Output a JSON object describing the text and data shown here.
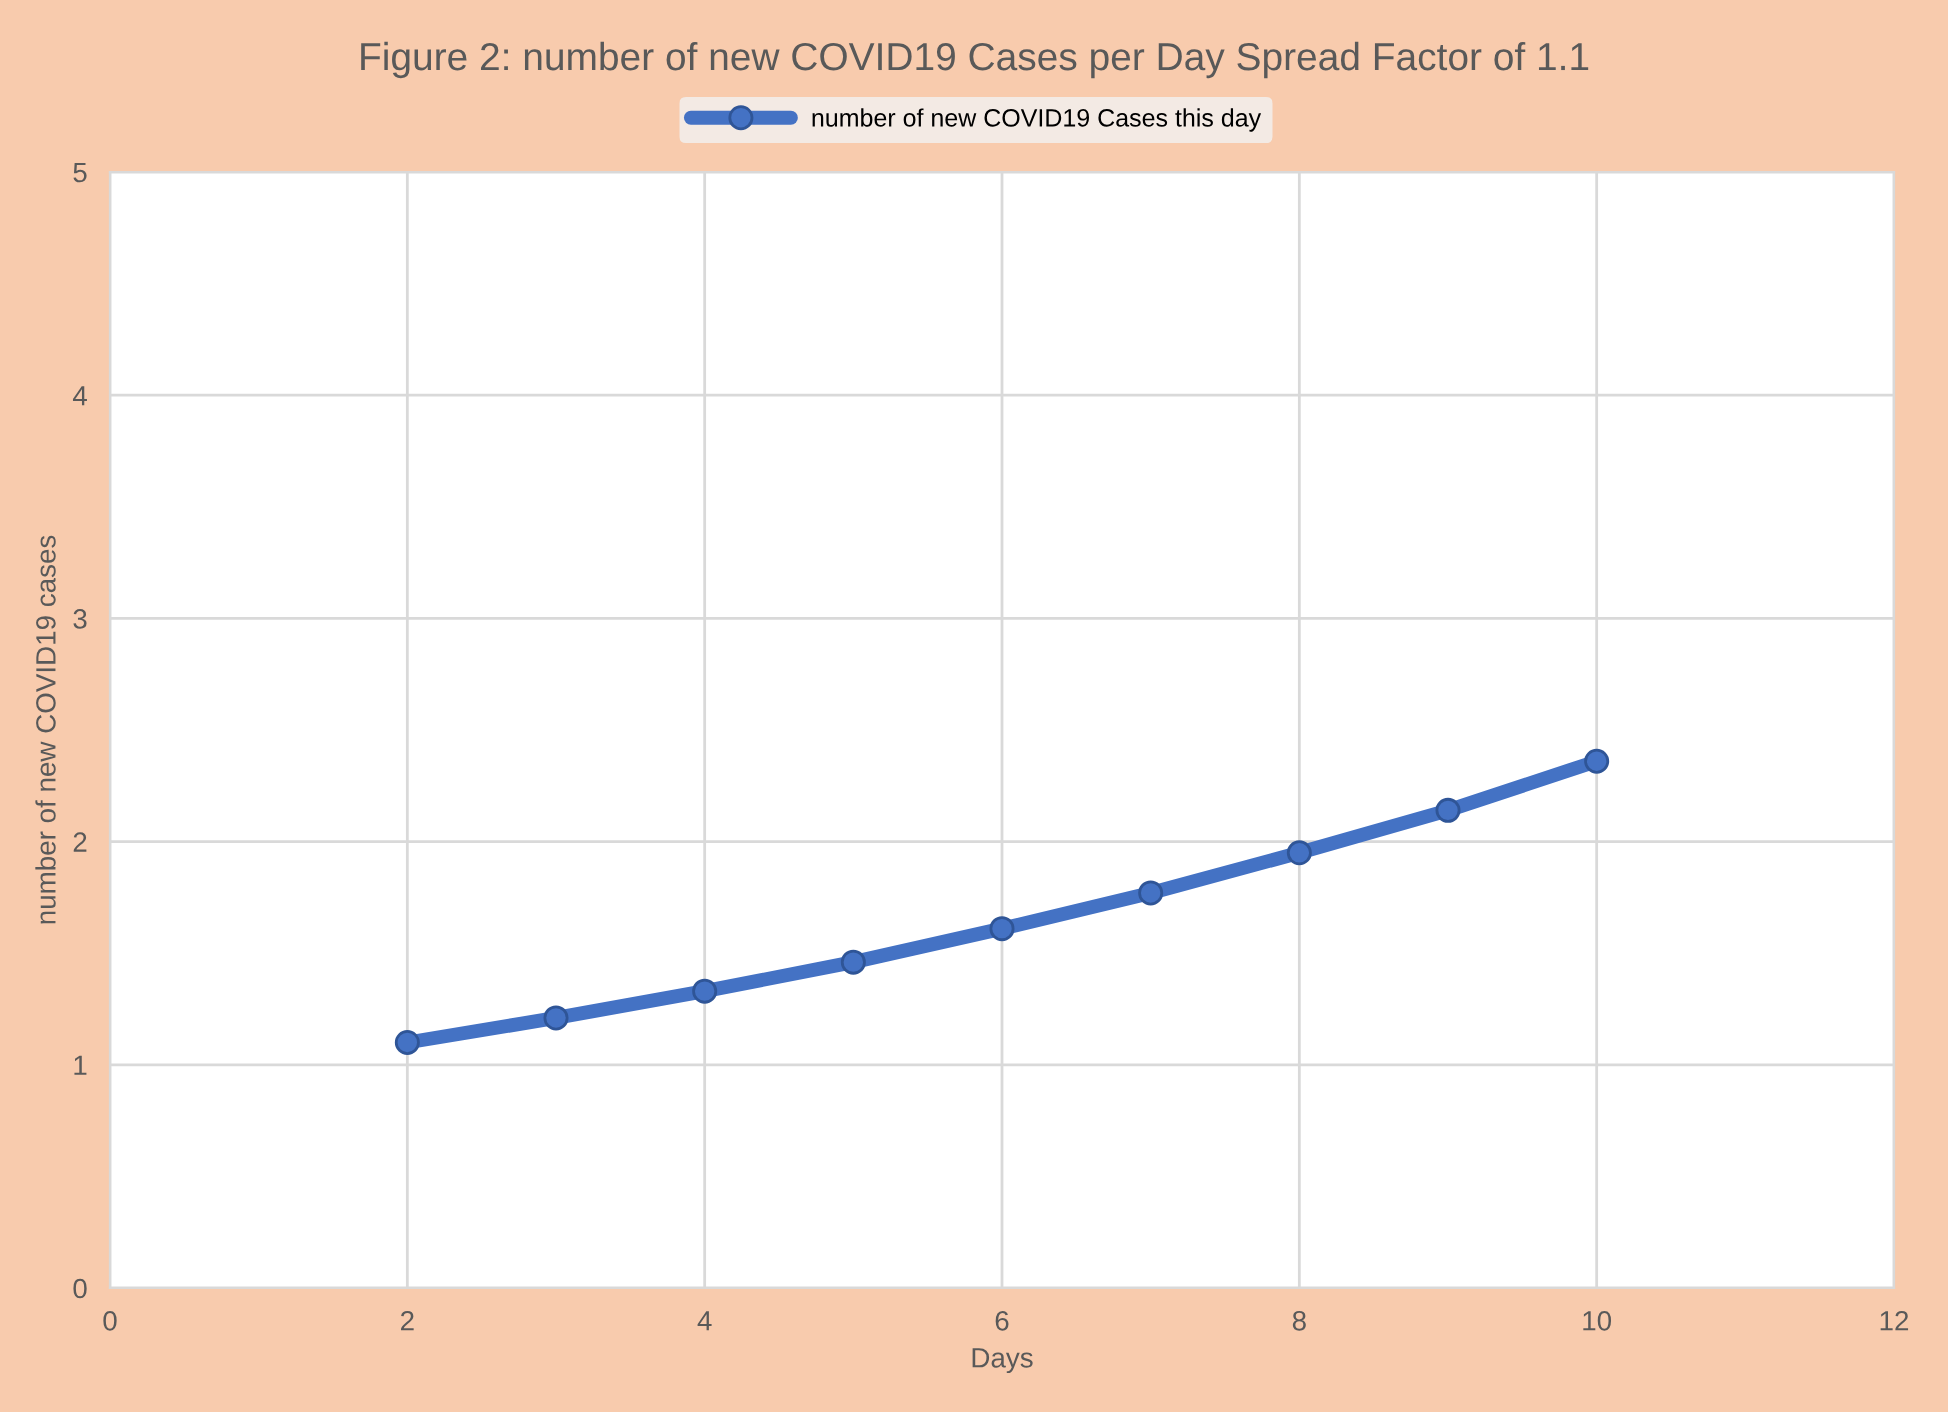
{
  "chart_data": {
    "type": "line",
    "title": "Figure 2: number of new COVID19 Cases per Day Spread Factor of 1.1",
    "xlabel": "Days",
    "ylabel": "number of new COVID19 cases",
    "x": [
      2,
      3,
      4,
      5,
      6,
      7,
      8,
      9,
      10
    ],
    "series": [
      {
        "name": "number of new COVID19 Cases this day",
        "color": "#4472c4",
        "values": [
          1.1,
          1.21,
          1.33,
          1.46,
          1.61,
          1.77,
          1.95,
          2.14,
          2.36
        ]
      }
    ],
    "xlim": [
      0,
      12
    ],
    "xticks": [
      0,
      2,
      4,
      6,
      8,
      10,
      12
    ],
    "ylim": [
      0,
      5
    ],
    "yticks": [
      0,
      1,
      2,
      3,
      4,
      5
    ],
    "grid": true,
    "legend": "top",
    "marker": "circle",
    "line_style": "solid"
  }
}
